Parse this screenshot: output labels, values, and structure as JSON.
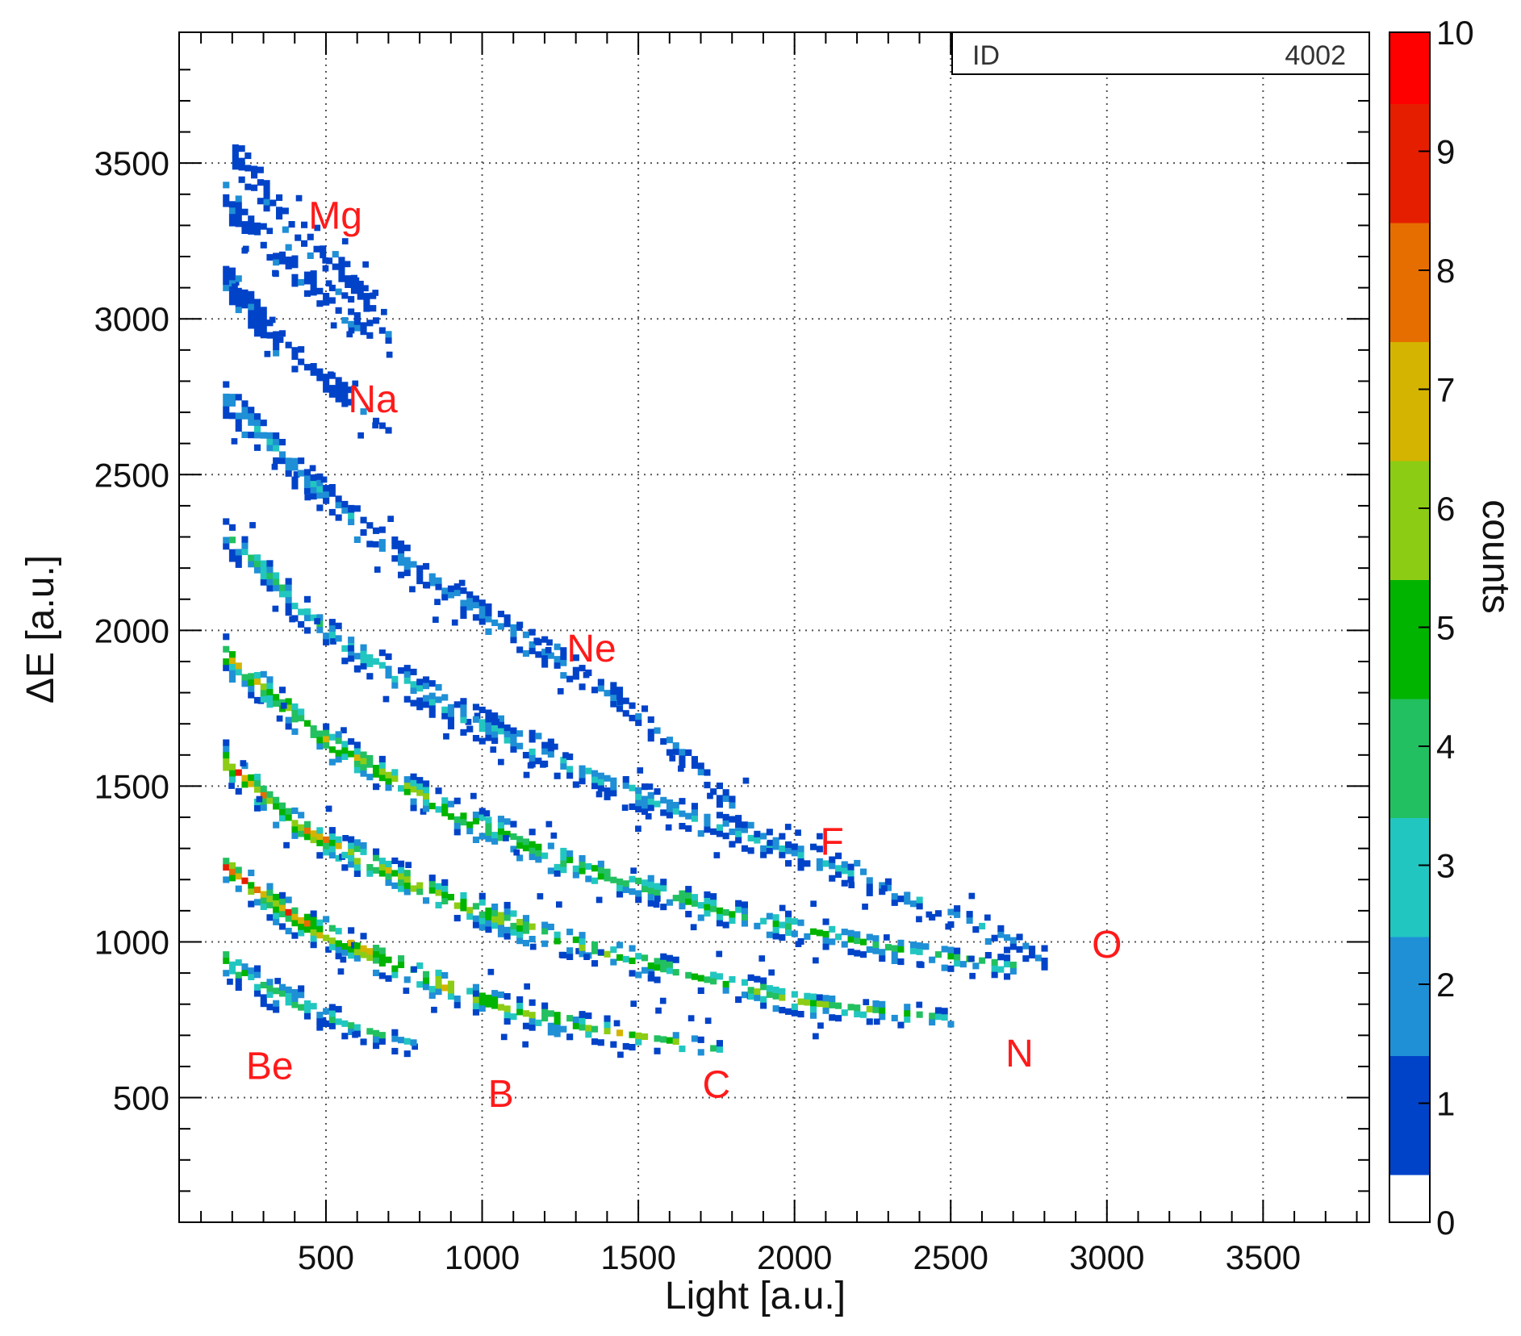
{
  "chart_data": {
    "type": "heatmap",
    "title": "",
    "xlabel": "Light [a.u.]",
    "ylabel": "ΔE [a.u.]",
    "xlim": [
      30,
      3840
    ],
    "ylim": [
      100,
      3920
    ],
    "x_ticks": [
      500,
      1000,
      1500,
      2000,
      2500,
      3000,
      3500
    ],
    "y_ticks": [
      500,
      1000,
      1500,
      2000,
      2500,
      3000,
      3500
    ],
    "grid": true,
    "stats_box": {
      "label": "ID",
      "value": "4002"
    },
    "colorbar": {
      "label": "counts",
      "min": 0,
      "max": 10,
      "ticks": [
        0,
        1,
        2,
        3,
        4,
        5,
        6,
        7,
        8,
        9,
        10
      ]
    },
    "colormap": [
      "#0000b4",
      "#0043c8",
      "#1f8fd6",
      "#22c6c0",
      "#22c060",
      "#00b400",
      "#8ccc14",
      "#d4b400",
      "#e66e00",
      "#e61e00",
      "#ff0000"
    ],
    "bands": [
      {
        "name": "Be",
        "x": [
          170,
          300,
          500,
          700,
          780
        ],
        "y": [
          950,
          860,
          770,
          700,
          680
        ],
        "peak": 5,
        "x_label": 320,
        "y_label": 560
      },
      {
        "name": "B",
        "x": [
          170,
          400,
          700,
          1000,
          1300,
          1600,
          1750
        ],
        "y": [
          1250,
          1080,
          940,
          820,
          740,
          690,
          660
        ],
        "peak": 9,
        "x_label": 1060,
        "y_label": 470
      },
      {
        "name": "C",
        "x": [
          170,
          400,
          800,
          1200,
          1600,
          2000,
          2250,
          2500
        ],
        "y": [
          1590,
          1380,
          1180,
          1030,
          920,
          820,
          790,
          760
        ],
        "peak": 8,
        "x_label": 1750,
        "y_label": 500
      },
      {
        "name": "N",
        "x": [
          170,
          500,
          900,
          1300,
          1800,
          2300,
          2700
        ],
        "y": [
          1930,
          1650,
          1420,
          1250,
          1100,
          990,
          930
        ],
        "peak": 7,
        "x_label": 2720,
        "y_label": 600
      },
      {
        "name": "O",
        "x": [
          170,
          500,
          900,
          1300,
          1700,
          2100,
          2500,
          2800
        ],
        "y": [
          2320,
          2000,
          1750,
          1560,
          1400,
          1260,
          1100,
          960
        ],
        "peak": 4,
        "x_label": 3000,
        "y_label": 950
      },
      {
        "name": "F",
        "x": [
          170,
          400,
          700,
          1000,
          1300,
          1600,
          1850
        ],
        "y": [
          2760,
          2520,
          2260,
          2060,
          1880,
          1650,
          1380
        ],
        "peak": 3,
        "x_label": 2120,
        "y_label": 1280
      },
      {
        "name": "Ne",
        "x": [
          170,
          300,
          500,
          700
        ],
        "y": [
          3150,
          2980,
          2800,
          2640
        ],
        "peak": 2,
        "x_label": 1350,
        "y_label": 1900
      },
      {
        "name": "Na",
        "x": [
          170,
          300,
          500,
          700
        ],
        "y": [
          3400,
          3250,
          3080,
          2950
        ],
        "peak": 1,
        "x_label": 650,
        "y_label": 2700
      },
      {
        "name": "Mg",
        "x": [
          200,
          400,
          650
        ],
        "y": [
          3540,
          3300,
          3050
        ],
        "peak": 1,
        "x_label": 530,
        "y_label": 3290
      }
    ]
  }
}
